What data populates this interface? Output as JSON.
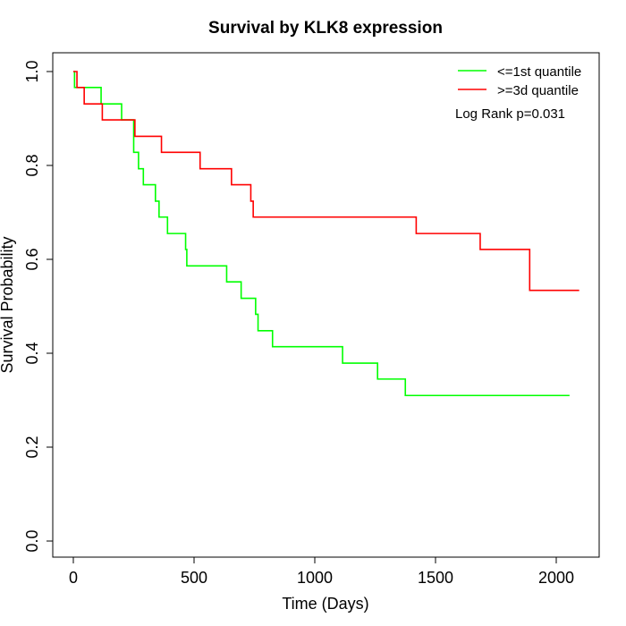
{
  "chart_data": {
    "type": "line",
    "title": "Survival by KLK8 expression",
    "xlabel": "Time (Days)",
    "ylabel": "Survival Probability",
    "xlim": [
      0,
      2100
    ],
    "ylim": [
      0,
      1
    ],
    "xticks": [
      0,
      500,
      1000,
      1500,
      2000
    ],
    "yticks": [
      0.0,
      0.2,
      0.4,
      0.6,
      0.8,
      1.0
    ],
    "xtick_labels": [
      "0",
      "500",
      "1000",
      "1500",
      "2000"
    ],
    "ytick_labels": [
      "0.0",
      "0.2",
      "0.4",
      "0.6",
      "0.8",
      "1.0"
    ],
    "grid": false,
    "legend_position": "top-right",
    "annotation": "Log Rank p=0.031",
    "series": [
      {
        "name": "<=1st quantile",
        "color": "#00ff00",
        "step": true,
        "points": [
          [
            0,
            1.0
          ],
          [
            5,
            0.966
          ],
          [
            115,
            0.931
          ],
          [
            200,
            0.897
          ],
          [
            250,
            0.862
          ],
          [
            250,
            0.828
          ],
          [
            270,
            0.793
          ],
          [
            290,
            0.759
          ],
          [
            340,
            0.724
          ],
          [
            355,
            0.69
          ],
          [
            390,
            0.655
          ],
          [
            465,
            0.621
          ],
          [
            470,
            0.586
          ],
          [
            635,
            0.552
          ],
          [
            695,
            0.517
          ],
          [
            755,
            0.483
          ],
          [
            765,
            0.448
          ],
          [
            825,
            0.414
          ],
          [
            1115,
            0.379
          ],
          [
            1260,
            0.345
          ],
          [
            1375,
            0.31
          ],
          [
            2055,
            0.31
          ]
        ]
      },
      {
        "name": ">=3d quantile",
        "color": "#ff0000",
        "step": true,
        "points": [
          [
            0,
            1.0
          ],
          [
            15,
            0.966
          ],
          [
            45,
            0.931
          ],
          [
            120,
            0.897
          ],
          [
            255,
            0.862
          ],
          [
            365,
            0.828
          ],
          [
            525,
            0.793
          ],
          [
            655,
            0.759
          ],
          [
            735,
            0.724
          ],
          [
            745,
            0.69
          ],
          [
            1420,
            0.655
          ],
          [
            1685,
            0.621
          ],
          [
            1890,
            0.534
          ],
          [
            2095,
            0.534
          ]
        ]
      }
    ]
  }
}
